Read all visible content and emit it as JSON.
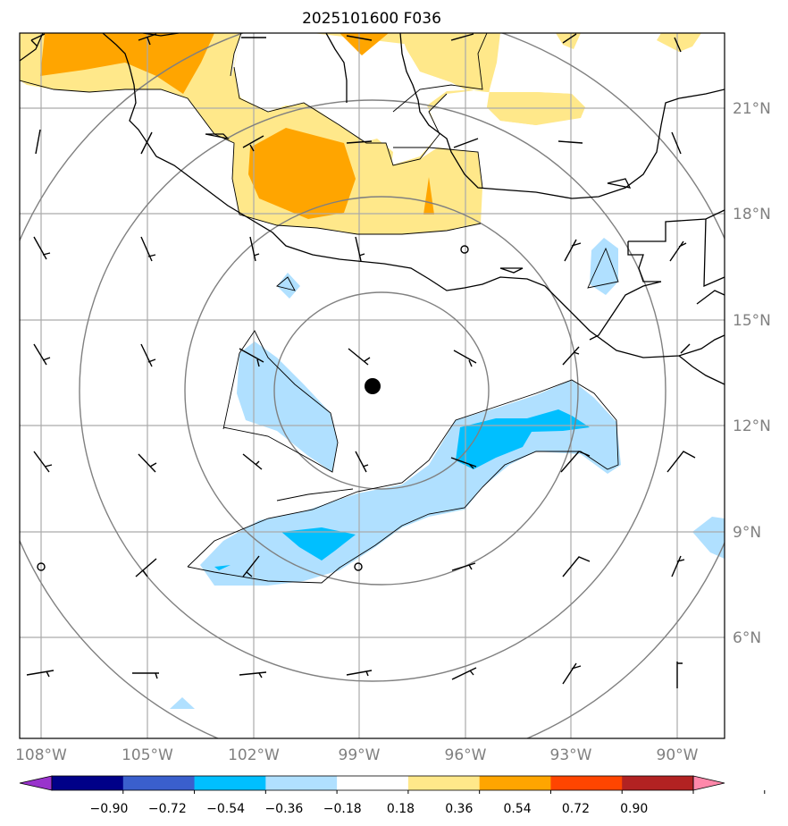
{
  "title": "2025101600 F036",
  "lon_ticks": [
    "108°W",
    "105°W",
    "102°W",
    "99°W",
    "96°W",
    "93°W",
    "90°W"
  ],
  "lat_ticks": [
    "21°N",
    "18°N",
    "15°N",
    "12°N",
    "9°N",
    "6°N"
  ],
  "colorbar": {
    "labels": [
      "−0.90",
      "−0.72",
      "−0.54",
      "−0.36",
      "−0.18",
      "0.18",
      "0.36",
      "0.54",
      "0.72",
      "0.90"
    ],
    "colors": {
      "under": "#9933cc",
      "bins": [
        "#000088",
        "#3a5fcd",
        "#00bfff",
        "#b0e0ff",
        "#ffffff",
        "#ffe88a",
        "#ffa500",
        "#ff4500",
        "#b22222"
      ],
      "over": "#ff88aa"
    }
  },
  "fill_colors": {
    "light_yellow": "#ffe88a",
    "orange": "#ffa500",
    "light_blue": "#b0e0ff",
    "blue": "#00bfff"
  },
  "storm_center": {
    "lon": "98.6°W",
    "lat": "13.1°N"
  }
}
